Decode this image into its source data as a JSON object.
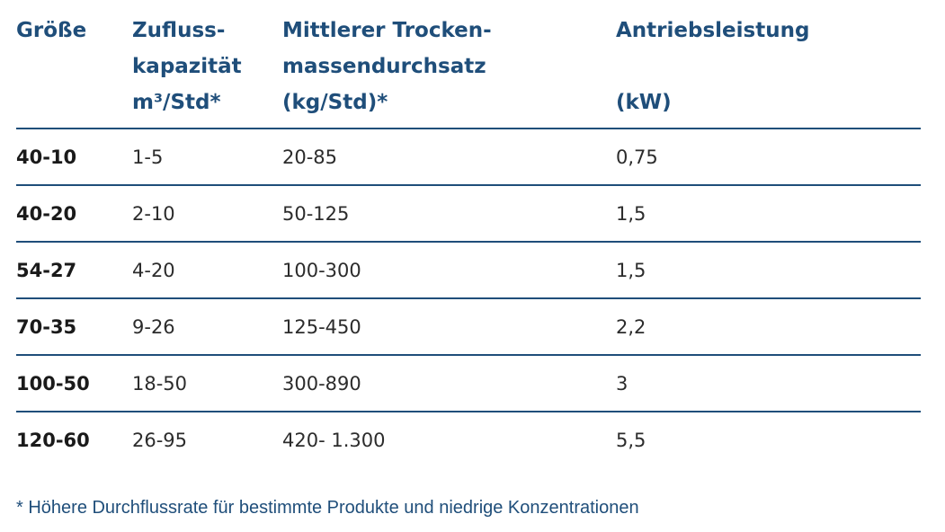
{
  "table": {
    "headers": {
      "size": "Größe",
      "inflow_line1": "Zufluss-",
      "inflow_line2": "kapazität",
      "inflow_line3": "m³/Std*",
      "throughput_line1": "Mittlerer Trocken-",
      "throughput_line2": "massendurchsatz",
      "throughput_line3": "(kg/Std)*",
      "power_line1": "Antriebsleistung",
      "power_line2": "(kW)"
    },
    "rows": [
      {
        "size": "40-10",
        "inflow": "1-5",
        "throughput": "20-85",
        "power": "0,75"
      },
      {
        "size": "40-20",
        "inflow": "2-10",
        "throughput": "50-125",
        "power": "1,5"
      },
      {
        "size": "54-27",
        "inflow": "4-20",
        "throughput": "100-300",
        "power": "1,5"
      },
      {
        "size": "70-35",
        "inflow": "9-26",
        "throughput": "125-450",
        "power": "2,2"
      },
      {
        "size": "100-50",
        "inflow": "18-50",
        "throughput": "300-890",
        "power": "3"
      },
      {
        "size": "120-60",
        "inflow": "26-95",
        "throughput": "420- 1.300",
        "power": "5,5"
      }
    ]
  },
  "footnote": "* Höhere Durchflussrate für bestimmte Produkte und niedrige Konzentrationen",
  "colors": {
    "accent": "#1f4e7a",
    "text": "#2c2c2c"
  }
}
